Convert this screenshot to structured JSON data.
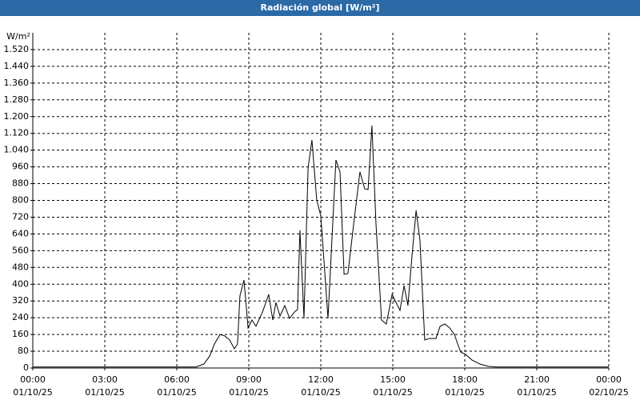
{
  "chart_data": {
    "type": "line",
    "title": "Radiación global [W/m²]",
    "y_label": "W/m²",
    "x": [
      0,
      6.8,
      7.13,
      7.37,
      7.57,
      7.8,
      8.0,
      8.2,
      8.4,
      8.53,
      8.63,
      8.8,
      8.97,
      9.13,
      9.3,
      9.57,
      9.83,
      10.0,
      10.13,
      10.3,
      10.5,
      10.7,
      10.9,
      11.03,
      11.13,
      11.3,
      11.47,
      11.63,
      11.83,
      12.0,
      12.3,
      12.63,
      12.8,
      12.97,
      13.13,
      13.37,
      13.63,
      13.83,
      13.97,
      14.13,
      14.3,
      14.53,
      14.73,
      14.97,
      15.3,
      15.47,
      15.63,
      15.8,
      15.97,
      16.13,
      16.33,
      16.53,
      16.8,
      16.97,
      17.17,
      17.37,
      17.57,
      17.7,
      17.83,
      18.03,
      18.3,
      18.63,
      18.97,
      19.3,
      24
    ],
    "series": [
      {
        "name": "Radiación global",
        "color": "#000000",
        "values": [
          5,
          5,
          19,
          57,
          115,
          160,
          153,
          134,
          92,
          115,
          344,
          420,
          191,
          229,
          199,
          267,
          351,
          229,
          313,
          248,
          298,
          237,
          267,
          279,
          657,
          237,
          955,
          1088,
          802,
          726,
          237,
          993,
          936,
          447,
          451,
          687,
          936,
          855,
          852,
          1157,
          687,
          229,
          210,
          351,
          275,
          393,
          298,
          535,
          752,
          611,
          134,
          141,
          141,
          199,
          210,
          191,
          160,
          115,
          76,
          65,
          38,
          19,
          8,
          5,
          5
        ]
      }
    ],
    "xlim": [
      0,
      24
    ],
    "xticks": [
      {
        "value": 0,
        "label": "00:00"
      },
      {
        "value": 3,
        "label": "03:00"
      },
      {
        "value": 6,
        "label": "06:00"
      },
      {
        "value": 9,
        "label": "09:00"
      },
      {
        "value": 12,
        "label": "12:00"
      },
      {
        "value": 15,
        "label": "15:00"
      },
      {
        "value": 18,
        "label": "18:00"
      },
      {
        "value": 21,
        "label": "21:00"
      },
      {
        "value": 24,
        "label": "00:00"
      }
    ],
    "xtick_dates": [
      "01/10/25",
      "01/10/25",
      "01/10/25",
      "01/10/25",
      "01/10/25",
      "01/10/25",
      "01/10/25",
      "01/10/25",
      "02/10/25"
    ],
    "ylim": [
      0,
      1600
    ],
    "yticks": [
      0,
      80,
      160,
      240,
      320,
      400,
      480,
      560,
      640,
      720,
      800,
      880,
      960,
      {
        "value": 1040,
        "label": "1.040"
      },
      {
        "value": 1120,
        "label": "1.120"
      },
      {
        "value": 1200,
        "label": "1.200"
      },
      {
        "value": 1280,
        "label": "1.280"
      },
      {
        "value": 1360,
        "label": "1.360"
      },
      {
        "value": 1440,
        "label": "1.440"
      },
      {
        "value": 1520,
        "label": "1.520"
      }
    ],
    "grid": true
  }
}
